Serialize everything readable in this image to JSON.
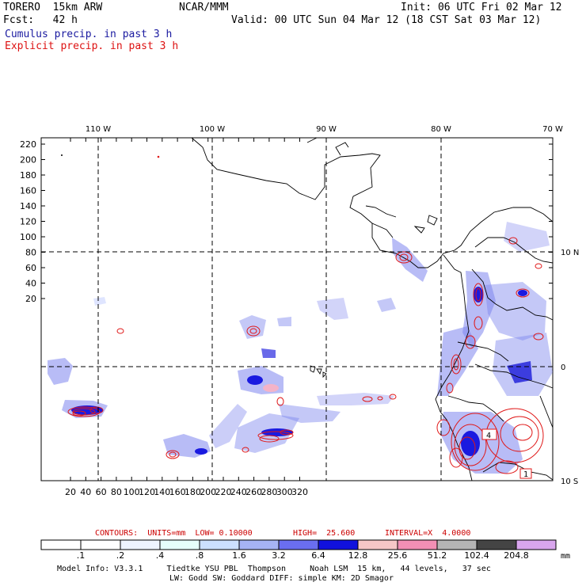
{
  "header": {
    "model": "TORERO  15km ARW",
    "org": "NCAR/MMM",
    "init": "Init: 06 UTC Fri 02 Mar 12",
    "fcst": "Fcst:   42 h",
    "valid": "Valid: 00 UTC Sun 04 Mar 12 (18 CST Sat 03 Mar 12)",
    "legend_cumulus": "Cumulus precip. in past 3 h",
    "legend_explicit": "Explicit precip. in past 3 h"
  },
  "map": {
    "lon_labels": [
      "110 W",
      "100 W",
      "90 W",
      "80 W",
      "70 W"
    ],
    "lat_labels": [
      "10 N",
      "0",
      "10 S"
    ],
    "y_ticks": [
      "220",
      "200",
      "180",
      "160",
      "140",
      "120",
      "100",
      "80",
      "60",
      "40",
      "20"
    ],
    "x_ticks": [
      "20",
      "40",
      "60",
      "80",
      "100",
      "120",
      "140",
      "160",
      "180",
      "200",
      "220",
      "240",
      "260",
      "280",
      "300",
      "320"
    ],
    "box_labels": [
      "4",
      "1"
    ]
  },
  "contours": {
    "units": "CONTOURS:  UNITS=mm  LOW= 0.10000",
    "high": "HIGH=  25.600",
    "interval": "INTERVAL=X  4.0000"
  },
  "colorbar": {
    "labels": [
      ".1",
      ".2",
      ".4",
      ".8",
      "1.6",
      "3.2",
      "6.4",
      "12.8",
      "25.6",
      "51.2",
      "102.4",
      "204.8"
    ],
    "unit": "mm",
    "colors": [
      "#ffffff",
      "#ffffff",
      "#eef4ff",
      "#e6fffa",
      "#cce0ff",
      "#a6b3f5",
      "#6a6ef0",
      "#1111dd",
      "#f7c7c7",
      "#f28fb5",
      "#b5b5b5",
      "#444444",
      "#d9a6ee"
    ]
  },
  "footer": {
    "line1": "Model Info: V3.3.1     Tiedtke YSU PBL  Thompson     Noah LSM  15 km,   44 levels,   37 sec",
    "line2": "LW: Godd SW: Goddard DIFF: simple KM: 2D Smagor"
  }
}
